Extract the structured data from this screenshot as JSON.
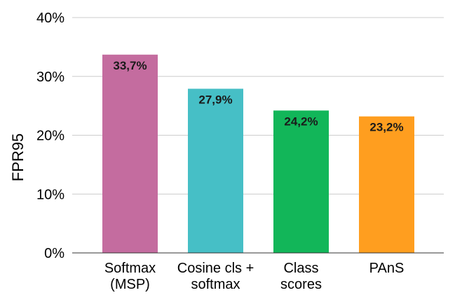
{
  "chart_data": {
    "type": "bar",
    "ylabel": "FPR95",
    "xlabel": "",
    "title": "",
    "ylim": [
      0,
      40
    ],
    "yticks": [
      "0%",
      "10%",
      "20%",
      "30%",
      "40%"
    ],
    "ytick_values": [
      0,
      10,
      20,
      30,
      40
    ],
    "grid": true,
    "categories": [
      [
        "Softmax",
        "(MSP)"
      ],
      [
        "Cosine cls +",
        "softmax"
      ],
      [
        "Class",
        "scores"
      ],
      [
        "PAnS"
      ]
    ],
    "values": [
      33.7,
      27.9,
      24.2,
      23.2
    ],
    "data_labels": [
      "33,7%",
      "27,9%",
      "24,2%",
      "23,2%"
    ],
    "colors": [
      "#c46c9f",
      "#46bfc6",
      "#12b659",
      "#ff9e1f"
    ]
  }
}
